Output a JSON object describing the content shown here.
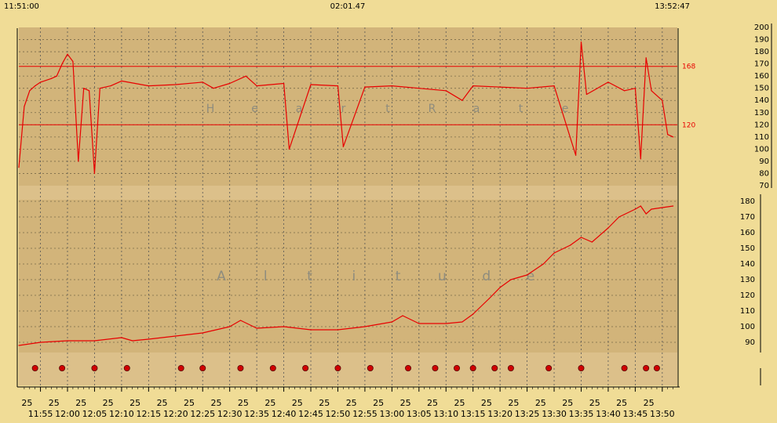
{
  "header": {
    "start_time": "11:51:00",
    "duration": "02:01.47",
    "end_time": "13:52:47"
  },
  "colors": {
    "background": "#f0dc96",
    "panel": "#d2b47a",
    "band": "#dcc08a",
    "grid": "#7a6a48",
    "series": "#e80000",
    "marker": "#d00000"
  },
  "chart_data": [
    {
      "type": "line",
      "title": "Heart Rate",
      "x_range": [
        "11:51",
        "13:52"
      ],
      "ylim": [
        70,
        200
      ],
      "yticks": [
        70,
        80,
        90,
        100,
        110,
        120,
        130,
        140,
        150,
        160,
        170,
        180,
        190,
        200
      ],
      "reference_lines": [
        {
          "value": 168,
          "label": "168"
        },
        {
          "value": 120,
          "label": "120"
        }
      ],
      "series": [
        {
          "x": [
            "11:51",
            "11:52",
            "11:53",
            "11:54",
            "11:55",
            "11:57",
            "11:58",
            "11:59",
            "12:00",
            "12:01",
            "12:02",
            "12:03",
            "12:04",
            "12:05",
            "12:06",
            "12:08",
            "12:10",
            "12:15",
            "12:20",
            "12:25",
            "12:27",
            "12:30",
            "12:33",
            "12:35",
            "12:40",
            "12:41",
            "12:45",
            "12:50",
            "12:51",
            "12:55",
            "13:00",
            "13:05",
            "13:10",
            "13:13",
            "13:15",
            "13:20",
            "13:25",
            "13:30",
            "13:34",
            "13:35",
            "13:36",
            "13:40",
            "13:43",
            "13:45",
            "13:46",
            "13:47",
            "13:48",
            "13:50",
            "13:51",
            "13:52"
          ],
          "values": [
            85,
            135,
            148,
            152,
            155,
            158,
            160,
            170,
            178,
            172,
            90,
            150,
            148,
            80,
            150,
            152,
            156,
            152,
            153,
            155,
            150,
            154,
            160,
            152,
            154,
            100,
            153,
            152,
            102,
            151,
            152,
            150,
            148,
            140,
            152,
            151,
            150,
            152,
            95,
            188,
            145,
            155,
            148,
            150,
            92,
            175,
            148,
            140,
            112,
            110
          ]
        }
      ]
    },
    {
      "type": "line",
      "title": "Altitude",
      "x_range": [
        "11:51",
        "13:52"
      ],
      "ylim": [
        80,
        185
      ],
      "yticks": [
        90,
        100,
        110,
        120,
        130,
        140,
        150,
        160,
        170,
        180
      ],
      "xticks": [
        "11:55",
        "12:00",
        "12:05",
        "12:10",
        "12:15",
        "12:20",
        "12:25",
        "12:30",
        "12:35",
        "12:40",
        "12:45",
        "12:50",
        "12:55",
        "13:00",
        "13:05",
        "13:10",
        "13:15",
        "13:20",
        "13:25",
        "13:30",
        "13:35",
        "13:40",
        "13:45",
        "13:50"
      ],
      "minor_tick_label": "25",
      "series": [
        {
          "x": [
            "11:51",
            "11:55",
            "12:00",
            "12:05",
            "12:10",
            "12:12",
            "12:15",
            "12:20",
            "12:25",
            "12:30",
            "12:32",
            "12:35",
            "12:40",
            "12:45",
            "12:50",
            "12:55",
            "13:00",
            "13:02",
            "13:05",
            "13:10",
            "13:13",
            "13:15",
            "13:18",
            "13:20",
            "13:22",
            "13:25",
            "13:28",
            "13:30",
            "13:33",
            "13:35",
            "13:37",
            "13:40",
            "13:42",
            "13:45",
            "13:46",
            "13:47",
            "13:48",
            "13:50",
            "13:52"
          ],
          "values": [
            88,
            90,
            91,
            91,
            93,
            91,
            92,
            94,
            96,
            100,
            104,
            99,
            100,
            98,
            98,
            100,
            103,
            107,
            102,
            102,
            103,
            108,
            118,
            125,
            130,
            133,
            140,
            147,
            152,
            157,
            154,
            163,
            170,
            175,
            177,
            172,
            175,
            176,
            177
          ]
        }
      ]
    }
  ],
  "markers": [
    "11:54",
    "11:59",
    "12:05",
    "12:11",
    "12:21",
    "12:25",
    "12:32",
    "12:38",
    "12:44",
    "12:50",
    "12:56",
    "13:03",
    "13:08",
    "13:12",
    "13:15",
    "13:19",
    "13:22",
    "13:29",
    "13:35",
    "13:43",
    "13:47",
    "13:49"
  ]
}
